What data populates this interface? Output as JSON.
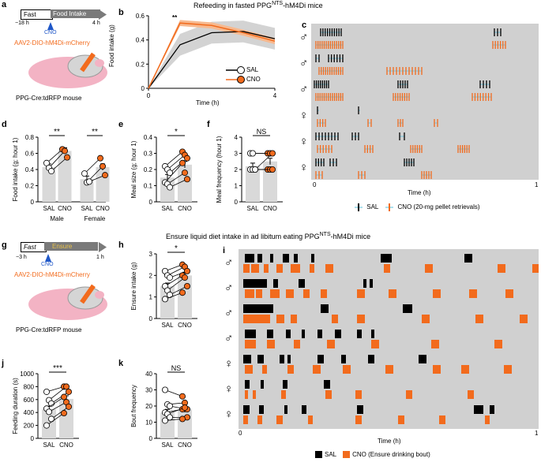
{
  "panels": {
    "a": "a",
    "b": "b",
    "c": "c",
    "d": "d",
    "e": "e",
    "f": "f",
    "g": "g",
    "h": "h",
    "i": "i",
    "j": "j",
    "k": "k"
  },
  "top_title": {
    "prefix": "Refeeding in fasted PPG",
    "sup": "NTS",
    "suffix": "-hM4Di mice"
  },
  "bottom_title": {
    "prefix": "Ensure liquid diet intake in ad libitum eating PPG",
    "sup": "NTS",
    "suffix": "-hM4Di mice"
  },
  "panel_a": {
    "fast": "Fast",
    "food_intake": "Food Intake",
    "t_start": "−18 h",
    "t_end": "4 h",
    "cno": "CNO",
    "virus": "AAV2-DIO-hM4Di-mCherry",
    "mouse": "PPG-Cre:tdRFP mouse"
  },
  "panel_g": {
    "fast": "Fast",
    "ensure": "Ensure",
    "t_start": "−3 h",
    "t_end": "1 h",
    "cno": "CNO",
    "virus": "AAV2-DIO-hM4Di-mCherry",
    "mouse": "PPG-Cre:tdRFP mouse"
  },
  "panel_b": {
    "ylabel": "Food intake (g)",
    "xlabel": "Time (h)",
    "sig": "**",
    "legend_sal": "SAL",
    "legend_cno": "CNO"
  },
  "panel_c": {
    "xlabel": "Time (h)",
    "legend_sal": "SAL",
    "legend_cno": "CNO (20-mg pellet retrievals)",
    "sexes": [
      "♂",
      "♂",
      "♂",
      "♀",
      "♀",
      "♀"
    ]
  },
  "panel_i": {
    "xlabel": "Time (h)",
    "legend_sal": "SAL",
    "legend_cno": "CNO (Ensure drinking bout)",
    "sexes": [
      "♂",
      "♂",
      "♂",
      "♂",
      "♀",
      "♀",
      "♀"
    ]
  },
  "colors": {
    "sal": "#000000",
    "cno": "#f26b1d",
    "band": "#d3d3d3",
    "raster_bg": "#cfcfcf",
    "bar": "#d9d9d9",
    "cyan": "#5bc0de"
  },
  "chart_data": [
    {
      "id": "b",
      "type": "line",
      "title": "",
      "xlabel": "Time (h)",
      "ylabel": "Food intake (g)",
      "xlim": [
        0,
        4
      ],
      "ylim": [
        0,
        0.6
      ],
      "xticks": [
        0,
        4
      ],
      "yticks": [
        0,
        0.2,
        0.4,
        0.6
      ],
      "x": [
        0,
        1,
        2,
        3,
        4
      ],
      "series": [
        {
          "name": "SAL",
          "values": [
            0,
            0.36,
            0.46,
            0.47,
            0.41
          ]
        },
        {
          "name": "CNO",
          "values": [
            0,
            0.54,
            0.52,
            0.46,
            0.39
          ]
        }
      ],
      "annotation": "**"
    },
    {
      "id": "d",
      "type": "bar",
      "ylabel": "Food intake (g; hour 1)",
      "ylim": [
        0,
        0.8
      ],
      "yticks": [
        0,
        0.2,
        0.4,
        0.6,
        0.8
      ],
      "groups": [
        "Male",
        "Female"
      ],
      "categories": [
        "SAL",
        "CNO",
        "SAL",
        "CNO"
      ],
      "values": [
        0.43,
        0.63,
        0.28,
        0.43
      ],
      "pairs": [
        [
          [
            0.48,
            0.65
          ],
          [
            0.42,
            0.63
          ],
          [
            0.38,
            0.55
          ]
        ],
        [
          [
            0.35,
            0.54
          ],
          [
            0.24,
            0.44
          ],
          [
            0.25,
            0.33
          ]
        ]
      ],
      "sig": [
        "**",
        "**"
      ]
    },
    {
      "id": "e",
      "type": "bar",
      "ylabel": "Meal size (g; hour 1)",
      "ylim": [
        0,
        0.4
      ],
      "yticks": [
        0,
        0.1,
        0.2,
        0.3,
        0.4
      ],
      "categories": [
        "SAL",
        "CNO"
      ],
      "values": [
        0.15,
        0.23
      ],
      "pairs": [
        [
          0.22,
          0.31
        ],
        [
          0.2,
          0.29
        ],
        [
          0.18,
          0.27
        ],
        [
          0.12,
          0.24
        ],
        [
          0.11,
          0.18
        ],
        [
          0.09,
          0.14
        ]
      ],
      "sig": "*"
    },
    {
      "id": "f",
      "type": "bar",
      "ylabel": "Meal frequency (hour 1)",
      "ylim": [
        0,
        4
      ],
      "yticks": [
        0,
        1,
        2,
        3,
        4
      ],
      "categories": [
        "SAL",
        "CNO"
      ],
      "values": [
        2.2,
        2.5
      ],
      "pairs": [
        [
          3,
          3
        ],
        [
          3,
          3
        ],
        [
          2,
          3
        ],
        [
          2,
          2
        ],
        [
          2,
          2
        ],
        [
          2,
          2
        ]
      ],
      "sig": "NS"
    },
    {
      "id": "h",
      "type": "bar",
      "ylabel": "Ensure intake (g)",
      "ylim": [
        0,
        3
      ],
      "yticks": [
        0,
        1,
        2,
        3
      ],
      "categories": [
        "SAL",
        "CNO"
      ],
      "values": [
        1.5,
        2.0
      ],
      "pairs": [
        [
          2.2,
          2.5
        ],
        [
          2.0,
          2.4
        ],
        [
          1.9,
          2.2
        ],
        [
          1.5,
          2.0
        ],
        [
          1.3,
          1.9
        ],
        [
          1.1,
          1.5
        ],
        [
          0.9,
          1.2
        ]
      ],
      "sig": "*"
    },
    {
      "id": "j",
      "type": "bar",
      "ylabel": "Feeding duration (s)",
      "ylim": [
        0,
        1000
      ],
      "yticks": [
        0,
        200,
        400,
        600,
        800,
        1000
      ],
      "categories": [
        "SAL",
        "CNO"
      ],
      "values": [
        450,
        610
      ],
      "pairs": [
        [
          720,
          800
        ],
        [
          590,
          800
        ],
        [
          540,
          720
        ],
        [
          460,
          640
        ],
        [
          410,
          560
        ],
        [
          300,
          490
        ],
        [
          200,
          390
        ]
      ],
      "sig": "***"
    },
    {
      "id": "k",
      "type": "bar",
      "ylabel": "Bout frequency",
      "ylim": [
        0,
        40
      ],
      "yticks": [
        0,
        10,
        20,
        30,
        40
      ],
      "categories": [
        "SAL",
        "CNO"
      ],
      "values": [
        16,
        18
      ],
      "pairs": [
        [
          30,
          26
        ],
        [
          21,
          22
        ],
        [
          20,
          18
        ],
        [
          16,
          18
        ],
        [
          15,
          19
        ],
        [
          13,
          13
        ],
        [
          11,
          12
        ]
      ],
      "sig": "NS"
    }
  ]
}
